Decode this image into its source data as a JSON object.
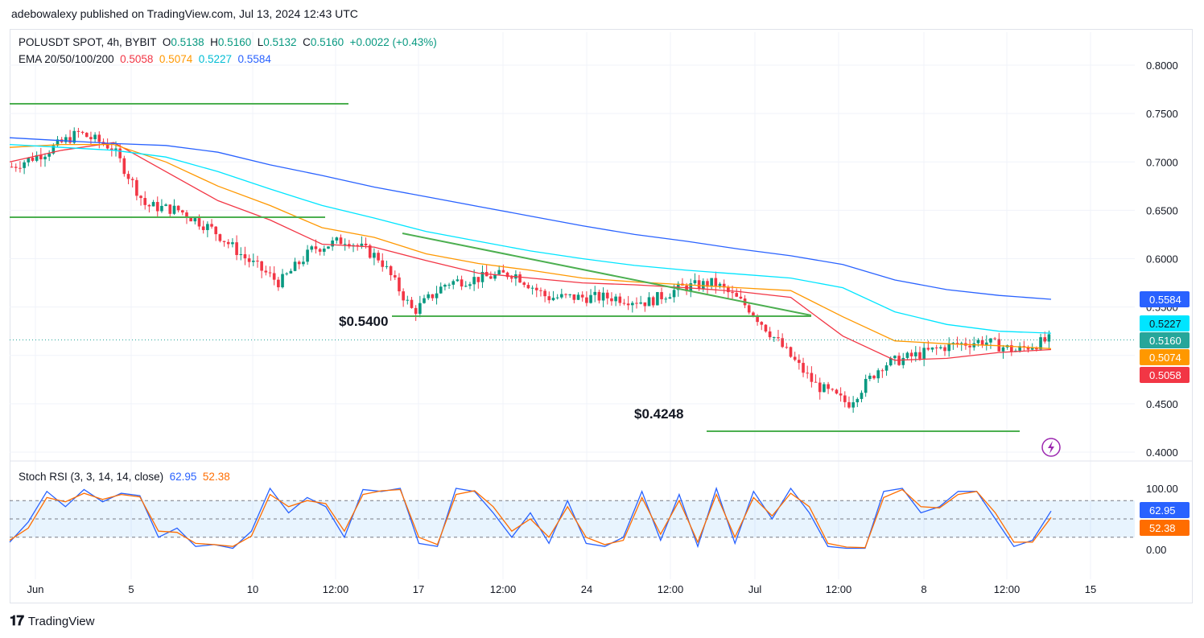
{
  "publish_line": "adebowalexy published on TradingView.com, Jul 13, 2024 12:43 UTC",
  "legend": {
    "symbol": "POLUSDT SPOT, 4h, BYBIT",
    "o_label": "O",
    "o": "0.5138",
    "h_label": "H",
    "h": "0.5160",
    "l_label": "L",
    "l": "0.5132",
    "c_label": "C",
    "c": "0.5160",
    "change": "+0.0022 (+0.43%)",
    "ema_label": "EMA 20/50/100/200",
    "ema20": "0.5058",
    "ema50": "0.5074",
    "ema100": "0.5227",
    "ema200": "0.5584",
    "stoch_label": "Stoch RSI (3, 3, 14, 14, close)",
    "stoch_k": "62.95",
    "stoch_d": "52.38"
  },
  "colors": {
    "ema20": "#f23645",
    "ema50": "#ff9800",
    "ema100": "#00e5ff",
    "ema200": "#2962ff",
    "up": "#089981",
    "down": "#f23645",
    "trendline": "#4caf50",
    "stoch_k": "#2962ff",
    "stoch_d": "#ff6d00",
    "stoch_band": "#2196f3"
  },
  "annotations": {
    "support_1": "$0.5400",
    "support_2": "$0.4248"
  },
  "footer": {
    "logo_text": "TradingView"
  },
  "chart_data": [
    {
      "type": "candlestick",
      "title": "POLUSDT SPOT, 4h, BYBIT",
      "x_tick_labels": [
        "Jun",
        "5",
        "10",
        "12:00",
        "17",
        "12:00",
        "24",
        "12:00",
        "Jul",
        "12:00",
        "8",
        "12:00",
        "15"
      ],
      "y_tick_labels": [
        "0.8000",
        "0.7500",
        "0.7000",
        "0.6500",
        "0.6000",
        "0.5500",
        "0.5000",
        "0.4500",
        "0.4000"
      ],
      "ylim": [
        0.39,
        0.83
      ],
      "axis_badges": [
        {
          "value": "0.5584",
          "series": "EMA 200",
          "color": "#2962ff"
        },
        {
          "value": "0.5227",
          "series": "EMA 100",
          "color": "#00e5ff"
        },
        {
          "value": "0.5160",
          "series": "Price",
          "color": "#26a69a"
        },
        {
          "value": "0.5074",
          "series": "EMA 50",
          "color": "#ff9800"
        },
        {
          "value": "0.5058",
          "series": "EMA 20",
          "color": "#f23645"
        }
      ],
      "price_path": [
        [
          "Jun 1",
          0.695
        ],
        [
          "Jun 4",
          0.71
        ],
        [
          "Jun 6",
          0.73
        ],
        [
          "Jun 7",
          0.715
        ],
        [
          "Jun 8",
          0.655
        ],
        [
          "Jun 10",
          0.65
        ],
        [
          "Jun 12",
          0.63
        ],
        [
          "Jun 13",
          0.6
        ],
        [
          "Jun 14",
          0.575
        ],
        [
          "Jun 15",
          0.61
        ],
        [
          "Jun 16",
          0.62
        ],
        [
          "Jun 17",
          0.6
        ],
        [
          "Jun 18",
          0.545
        ],
        [
          "Jun 19",
          0.575
        ],
        [
          "Jun 21",
          0.58
        ],
        [
          "Jun 23",
          0.585
        ],
        [
          "Jun 24",
          0.56
        ],
        [
          "Jun 26",
          0.56
        ],
        [
          "Jun 28",
          0.56
        ],
        [
          "Jun 30",
          0.555
        ],
        [
          "Jul 1",
          0.57
        ],
        [
          "Jul 2",
          0.575
        ],
        [
          "Jul 3",
          0.55
        ],
        [
          "Jul 4",
          0.51
        ],
        [
          "Jul 5",
          0.47
        ],
        [
          "Jul 6",
          0.45
        ],
        [
          "Jul 7",
          0.49
        ],
        [
          "Jul 8",
          0.5
        ],
        [
          "Jul 10",
          0.51
        ],
        [
          "Jul 11",
          0.515
        ],
        [
          "Jul 12",
          0.505
        ],
        [
          "Jul 13",
          0.516
        ]
      ],
      "series": [
        {
          "name": "EMA 20",
          "values": [
            0.7,
            0.712,
            0.72,
            0.69,
            0.66,
            0.64,
            0.615,
            0.612,
            0.598,
            0.585,
            0.58,
            0.575,
            0.573,
            0.57,
            0.566,
            0.56,
            0.52,
            0.495,
            0.497,
            0.503,
            0.506
          ]
        },
        {
          "name": "EMA 50",
          "values": [
            0.715,
            0.718,
            0.718,
            0.7,
            0.675,
            0.655,
            0.632,
            0.622,
            0.605,
            0.595,
            0.588,
            0.58,
            0.576,
            0.573,
            0.57,
            0.567,
            0.54,
            0.515,
            0.512,
            0.51,
            0.507
          ]
        },
        {
          "name": "EMA 100",
          "values": [
            0.718,
            0.715,
            0.712,
            0.705,
            0.69,
            0.672,
            0.655,
            0.642,
            0.628,
            0.618,
            0.608,
            0.6,
            0.593,
            0.588,
            0.584,
            0.58,
            0.57,
            0.545,
            0.532,
            0.525,
            0.523
          ]
        },
        {
          "name": "EMA 200",
          "values": [
            0.725,
            0.722,
            0.719,
            0.717,
            0.71,
            0.697,
            0.686,
            0.674,
            0.664,
            0.654,
            0.644,
            0.634,
            0.625,
            0.618,
            0.61,
            0.603,
            0.594,
            0.578,
            0.568,
            0.562,
            0.558
          ]
        }
      ],
      "annotations": [
        {
          "text": "$0.5400",
          "kind": "horizontal support",
          "value": 0.54
        },
        {
          "text": "$0.4248",
          "kind": "horizontal support",
          "value": 0.4248
        }
      ]
    },
    {
      "type": "line",
      "title": "Stoch RSI (3, 3, 14, 14, close)",
      "y_tick_labels": [
        "100.00",
        "0.00"
      ],
      "ylim": [
        0,
        100
      ],
      "bands": [
        20,
        50,
        80
      ],
      "series": [
        {
          "name": "K",
          "last": 62.95,
          "values": [
            12,
            45,
            95,
            70,
            98,
            78,
            92,
            88,
            20,
            35,
            5,
            8,
            2,
            30,
            100,
            60,
            85,
            70,
            20,
            98,
            95,
            100,
            10,
            5,
            100,
            95,
            60,
            20,
            60,
            10,
            80,
            10,
            5,
            20,
            95,
            15,
            90,
            5,
            100,
            10,
            95,
            50,
            100,
            60,
            5,
            2,
            2,
            95,
            100,
            60,
            70,
            95,
            95,
            50,
            5,
            15,
            62.95
          ]
        },
        {
          "name": "D",
          "last": 52.38,
          "values": [
            15,
            35,
            85,
            78,
            92,
            82,
            90,
            86,
            30,
            28,
            10,
            8,
            5,
            22,
            90,
            70,
            80,
            75,
            30,
            90,
            96,
            98,
            20,
            8,
            90,
            96,
            70,
            30,
            50,
            20,
            70,
            20,
            8,
            15,
            85,
            25,
            80,
            12,
            90,
            20,
            85,
            55,
            92,
            70,
            10,
            4,
            3,
            85,
            98,
            70,
            68,
            90,
            95,
            60,
            12,
            12,
            52.38
          ]
        }
      ]
    }
  ]
}
